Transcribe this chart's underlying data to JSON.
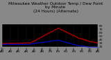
{
  "title": "Milwaukee Weather Outdoor Temp / Dew Point\nby Minute\n(24 Hours) (Alternate)",
  "title_fontsize": 4.2,
  "bg_color": "#888888",
  "plot_bg_color": "#000000",
  "temp_color": "#ff0000",
  "dew_color": "#0000ff",
  "ylim": [
    20,
    85
  ],
  "yticks": [
    20,
    30,
    40,
    50,
    60,
    70,
    80
  ],
  "ylabel_fontsize": 3.2,
  "xlabel_fontsize": 2.8,
  "n_minutes": 1440,
  "seed": 99,
  "title_color": "#000000",
  "tick_color": "#000000",
  "grid_color": "#555555"
}
